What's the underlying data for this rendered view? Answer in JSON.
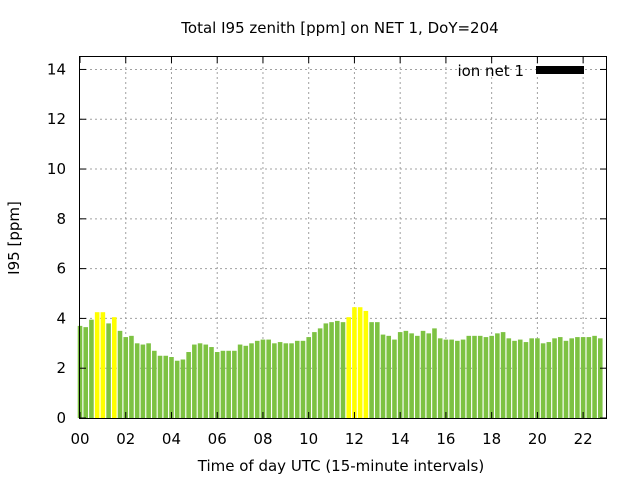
{
  "chart_data": {
    "type": "bar",
    "title": "Total I95 zenith [ppm] on NET 1, DoY=204",
    "xlabel": "Time of day UTC (15-minute intervals)",
    "ylabel": "I95 [ppm]",
    "xlim": [
      0,
      23
    ],
    "ylim": [
      0,
      14.5
    ],
    "x_ticks": [
      {
        "value": 0,
        "label": "00"
      },
      {
        "value": 2,
        "label": "02"
      },
      {
        "value": 4,
        "label": "04"
      },
      {
        "value": 6,
        "label": "06"
      },
      {
        "value": 8,
        "label": "08"
      },
      {
        "value": 10,
        "label": "10"
      },
      {
        "value": 12,
        "label": "12"
      },
      {
        "value": 14,
        "label": "14"
      },
      {
        "value": 16,
        "label": "16"
      },
      {
        "value": 18,
        "label": "18"
      },
      {
        "value": 20,
        "label": "20"
      },
      {
        "value": 22,
        "label": "22"
      }
    ],
    "y_ticks": [
      {
        "value": 0,
        "label": "0"
      },
      {
        "value": 2,
        "label": "2"
      },
      {
        "value": 4,
        "label": "4"
      },
      {
        "value": 6,
        "label": "6"
      },
      {
        "value": 8,
        "label": "8"
      },
      {
        "value": 10,
        "label": "10"
      },
      {
        "value": 12,
        "label": "12"
      },
      {
        "value": 14,
        "label": "14"
      }
    ],
    "grid": true,
    "legend": {
      "label": "ion net 1",
      "position": "top-right",
      "color": "#000000"
    },
    "colors": {
      "normal": "#7dc242",
      "high": "#ffff00"
    },
    "interval_hours": 0.25,
    "series": [
      {
        "name": "ion net 1",
        "values": [
          3.7,
          3.65,
          3.95,
          4.25,
          4.25,
          3.8,
          4.05,
          3.5,
          3.25,
          3.3,
          3.0,
          2.95,
          3.0,
          2.7,
          2.5,
          2.5,
          2.45,
          2.3,
          2.35,
          2.65,
          2.95,
          3.0,
          2.95,
          2.85,
          2.65,
          2.7,
          2.7,
          2.7,
          2.95,
          2.9,
          3.0,
          3.1,
          3.15,
          3.15,
          3.0,
          3.05,
          3.0,
          3.0,
          3.1,
          3.1,
          3.25,
          3.45,
          3.6,
          3.8,
          3.85,
          3.9,
          3.85,
          4.05,
          4.45,
          4.45,
          4.3,
          3.85,
          3.85,
          3.35,
          3.3,
          3.15,
          3.45,
          3.5,
          3.4,
          3.3,
          3.5,
          3.4,
          3.6,
          3.2,
          3.15,
          3.15,
          3.1,
          3.15,
          3.3,
          3.3,
          3.3,
          3.25,
          3.3,
          3.4,
          3.45,
          3.2,
          3.1,
          3.15,
          3.05,
          3.2,
          3.2,
          3.0,
          3.05,
          3.2,
          3.25,
          3.1,
          3.2,
          3.25,
          3.25,
          3.25,
          3.3,
          3.2
        ],
        "highlight": [
          3,
          4,
          6,
          47,
          48,
          49,
          50
        ]
      }
    ]
  }
}
